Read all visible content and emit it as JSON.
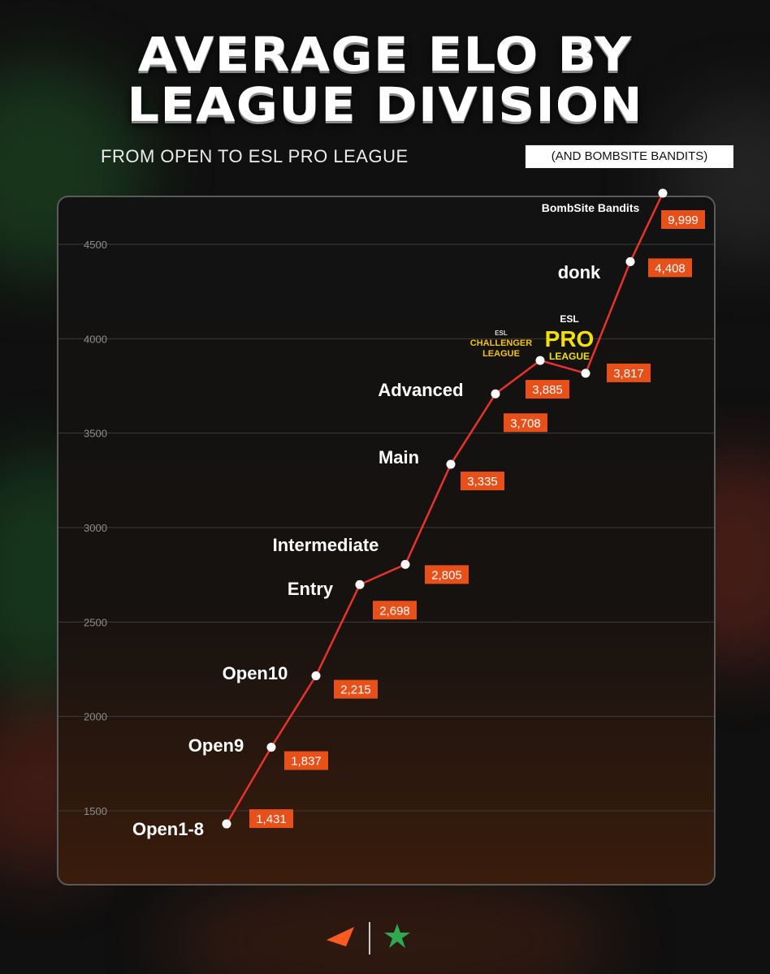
{
  "header": {
    "title_line1": "AVERAGE ELO BY",
    "title_line2": "LEAGUE DIVISION",
    "subtitle": "FROM OPEN TO ESL PRO LEAGUE",
    "subtitle_note": "(AND BOMBSITE BANDITS)"
  },
  "chart_data": {
    "type": "line",
    "title": "AVERAGE ELO BY LEAGUE DIVISION",
    "subtitle": "FROM OPEN TO ESL PRO LEAGUE (AND BOMBSITE BANDITS)",
    "xlabel": "",
    "ylabel": "",
    "ylim": [
      1300,
      4700
    ],
    "y_ticks": [
      1500,
      2000,
      2500,
      3000,
      3500,
      4000,
      4500
    ],
    "grid": true,
    "categories": [
      "Open1-8",
      "Open9",
      "Open10",
      "Entry",
      "Intermediate",
      "Main",
      "Advanced",
      "ESL Challenger League",
      "ESL Pro League",
      "donk",
      "BombSite Bandits"
    ],
    "values": [
      1431,
      1837,
      2215,
      2698,
      2805,
      3335,
      3708,
      3885,
      3817,
      4408,
      9999
    ],
    "value_labels": [
      "1,431",
      "1,837",
      "2,215",
      "2,698",
      "2,805",
      "3,335",
      "3,708",
      "3,885",
      "3,817",
      "4,408",
      "9,999"
    ],
    "point_labels": [
      "Open1-8",
      "Open9",
      "Open10",
      "Entry",
      "Intermediate",
      "Main",
      "Advanced",
      "",
      "",
      "donk",
      "BombSite Bandits"
    ],
    "logo_challenger": {
      "top": "ESL",
      "line1": "CHALLENGER",
      "line2": "LEAGUE"
    },
    "logo_pro": {
      "top": "ESL",
      "line1": "PRO",
      "line2": "LEAGUE"
    },
    "colors": {
      "line": "#e8332a",
      "label_bg": "#e8501a",
      "point": "#ffffff",
      "challenger_logo": "#f5c400",
      "pro_logo": "#f2e000"
    }
  },
  "footer": {
    "logo_left": "faceit-logo-icon",
    "logo_right": "star-logo-icon"
  }
}
